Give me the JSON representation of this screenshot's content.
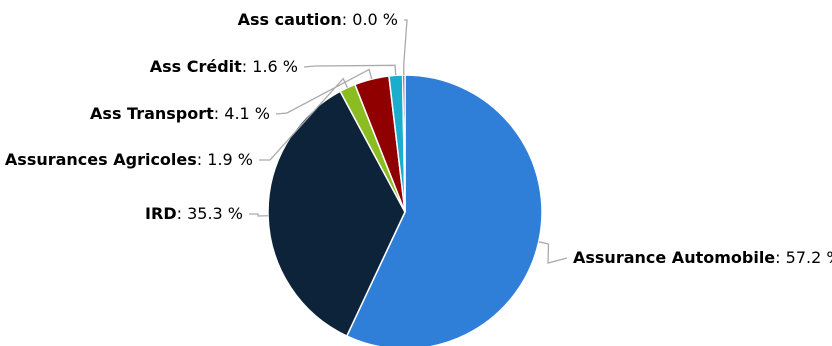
{
  "chart_data": {
    "type": "pie",
    "title": "",
    "unit": "%",
    "slices": [
      {
        "label": "Assurance Automobile",
        "value": 57.2,
        "value_label": "57.2 %",
        "color": "#2f7ed8"
      },
      {
        "label": "IRD",
        "value": 35.3,
        "value_label": "35.3 %",
        "color": "#0d233a"
      },
      {
        "label": "Assurances Agricoles",
        "value": 1.9,
        "value_label": "1.9 %",
        "color": "#8bbc21"
      },
      {
        "label": "Ass Transport",
        "value": 4.1,
        "value_label": "4.1 %",
        "color": "#910000"
      },
      {
        "label": "Ass Crédit",
        "value": 1.6,
        "value_label": "1.6 %",
        "color": "#1aadce"
      },
      {
        "label": "Ass caution",
        "value": 0.0,
        "value_label": "0.0 %",
        "color": "#492970"
      }
    ],
    "label_separator": ": ",
    "connector_color": "#aaaaaa",
    "slice_border_color": "#ffffff"
  }
}
